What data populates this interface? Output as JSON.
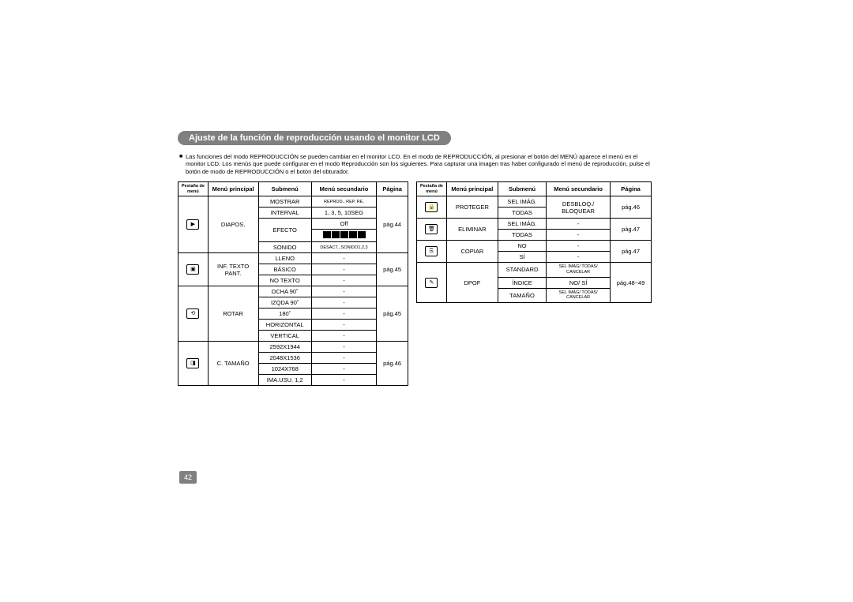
{
  "title": "Ajuste de la función de reproducción usando el monitor LCD",
  "intro": "Las funciones del modo REPRODUCCIÓN se pueden cambiar en el monitor LCD. En el modo de REPRODUCCIÓN, al presionar el botón del MENÚ aparece el menú en el monitor LCD. Los menús que puede configurar en el modo Reproducción son los siguientes. Para capturar una imagen tras haber configurado el menú de reproducción, pulse el botón de modo de REPRODUCCIÓN o el botón del obturador.",
  "page_number": "42",
  "headers": {
    "tab": "Pestaña de menú",
    "main": "Menú principal",
    "sub": "Submenú",
    "sec": "Menú secundario",
    "page": "Página"
  },
  "left_groups": [
    {
      "icon": "▶",
      "main": "DIAPOS.",
      "page": "pág.44",
      "rows": [
        {
          "sub": "MOSTRAR",
          "sec": "REPROD., REP. RE."
        },
        {
          "sub": "INTERVAL",
          "sec": "1, 3, 5, 10SEG"
        },
        {
          "sub": "EFECTO",
          "sec": "Off",
          "sec2_icons": true
        },
        {
          "sub": "SONIDO",
          "sec": "DESACT., SONIDO1,2,3"
        }
      ]
    },
    {
      "icon": "▣",
      "main": "INF. TEXTO PANT.",
      "page": "pág.45",
      "rows": [
        {
          "sub": "LLENO",
          "sec": "-"
        },
        {
          "sub": "BÁSICO",
          "sec": "-"
        },
        {
          "sub": "NO TEXTO",
          "sec": "-"
        }
      ]
    },
    {
      "icon": "⟲",
      "main": "ROTAR",
      "page": "pág.45",
      "rows": [
        {
          "sub": "DCHA 90˚",
          "sec": "-"
        },
        {
          "sub": "IZQDA 90˚",
          "sec": "-"
        },
        {
          "sub": "180˚",
          "sec": "-"
        },
        {
          "sub": "HORIZONTAL",
          "sec": "-"
        },
        {
          "sub": "VERTICAL",
          "sec": "-"
        }
      ]
    },
    {
      "icon": "◨",
      "main": "C. TAMAÑO",
      "page": "pág.46",
      "rows": [
        {
          "sub": "2592X1944",
          "sec": "-"
        },
        {
          "sub": "2048X1536",
          "sec": "-"
        },
        {
          "sub": "1024X768",
          "sec": "-"
        },
        {
          "sub": "IMA.USU. 1,2",
          "sec": "-"
        }
      ]
    }
  ],
  "right_groups": [
    {
      "icon": "🔒",
      "main": "PROTEGER",
      "page": "pág.46",
      "rows": [
        {
          "sub": "SEL IMÁG.",
          "sec": "DESBLOQ./"
        },
        {
          "sub": "TODAS",
          "sec": "BLOQUEAR"
        }
      ],
      "sec_merged": true
    },
    {
      "icon": "🗑",
      "main": "ELIMINAR",
      "page": "pág.47",
      "rows": [
        {
          "sub": "SEL IMÁG.",
          "sec": "-"
        },
        {
          "sub": "TODAS",
          "sec": "-"
        }
      ]
    },
    {
      "icon": "⎘",
      "main": "COPIAR",
      "page": "pág.47",
      "rows": [
        {
          "sub": "NO",
          "sec": "-"
        },
        {
          "sub": "SÍ",
          "sec": "-"
        }
      ]
    },
    {
      "icon": "✎",
      "main": "DPOF",
      "page": "pág.48~49",
      "rows": [
        {
          "sub": "STANDARD",
          "sec": "SEL IMÁG/ TODAS/ CANCELAR",
          "tiny": true
        },
        {
          "sub": "ÍNDICE",
          "sec": "NO/ SÍ"
        },
        {
          "sub": "TAMAÑO",
          "sec": "SEL IMÁG/ TODAS/ CANCELAR",
          "tiny": true
        }
      ]
    }
  ]
}
